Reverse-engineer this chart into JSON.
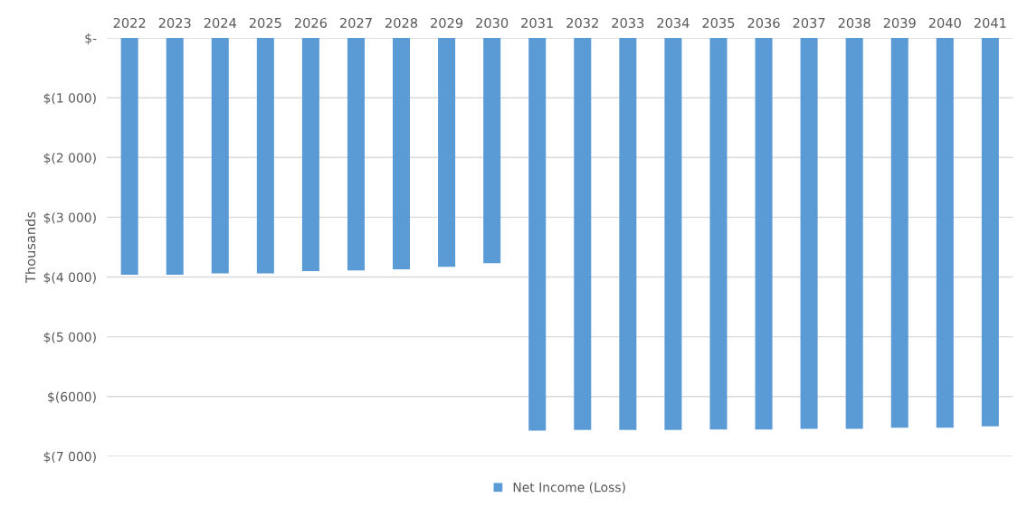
{
  "chart_data": {
    "type": "bar",
    "ylabel": "Thousands",
    "categories": [
      "2022",
      "2023",
      "2024",
      "2025",
      "2026",
      "2027",
      "2028",
      "2029",
      "2030",
      "2031",
      "2032",
      "2033",
      "2034",
      "2035",
      "2036",
      "2037",
      "2038",
      "2039",
      "2040",
      "2041"
    ],
    "series": [
      {
        "name": "Net Income (Loss)",
        "color": "#5b9bd5",
        "values": [
          -3960,
          -3960,
          -3940,
          -3940,
          -3900,
          -3890,
          -3870,
          -3830,
          -3770,
          -6570,
          -6560,
          -6560,
          -6560,
          -6550,
          -6550,
          -6540,
          -6540,
          -6520,
          -6520,
          -6500
        ]
      }
    ],
    "ylim": [
      -7000,
      0
    ],
    "yticks": [
      {
        "value": 0,
        "label": "$-"
      },
      {
        "value": -1000,
        "label": "$(1 000)"
      },
      {
        "value": -2000,
        "label": "$(2 000)"
      },
      {
        "value": -3000,
        "label": "$(3 000)"
      },
      {
        "value": -4000,
        "label": "$(4 000)"
      },
      {
        "value": -5000,
        "label": "$(5 000)"
      },
      {
        "value": -6000,
        "label": "$(6000)"
      },
      {
        "value": -7000,
        "label": "$(7 000)"
      }
    ],
    "grid": "y",
    "legend": "bottom"
  }
}
